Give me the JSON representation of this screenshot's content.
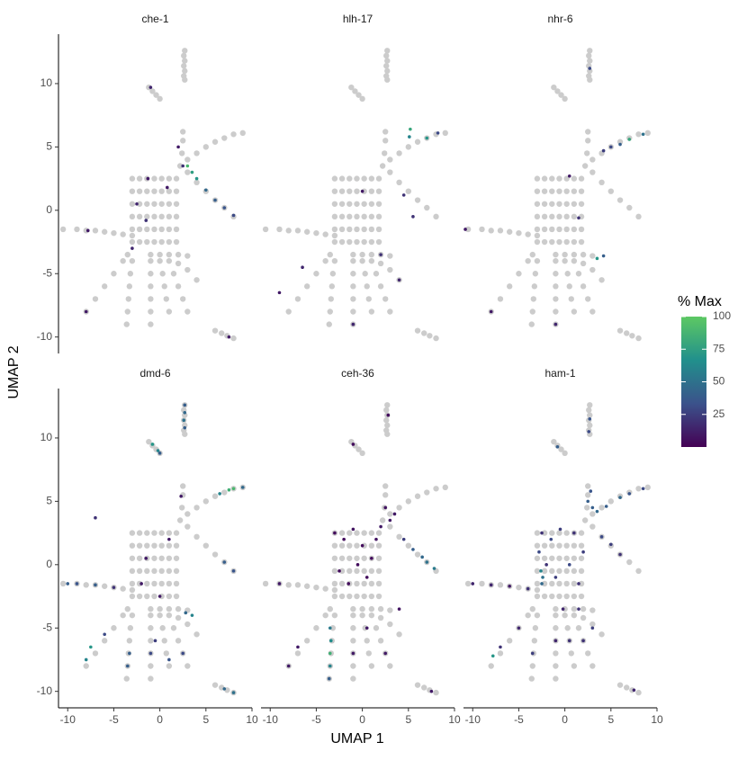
{
  "chart_data": {
    "type": "scatter",
    "xlabel": "UMAP 1",
    "ylabel": "UMAP 2",
    "xlim": [
      -11,
      10
    ],
    "ylim": [
      -11.3,
      13.9
    ],
    "xticks": [
      -10,
      -5,
      0,
      5,
      10
    ],
    "yticks": [
      -10,
      -5,
      0,
      5,
      10
    ],
    "colorbar": {
      "title": "% Max",
      "lim": [
        0,
        100
      ],
      "ticks": [
        25,
        50,
        75,
        100
      ],
      "colors": [
        "#440154",
        "#3b528b",
        "#21908c",
        "#5dc863"
      ]
    },
    "background": {
      "color": "#cccccc",
      "x": [
        2.7,
        2.6,
        2.7,
        2.6,
        2.7,
        2.6,
        2.7,
        -1.2,
        -0.8,
        -0.4,
        0,
        -3,
        -2.2,
        -1.4,
        -0.6,
        0.2,
        1,
        1.8,
        -3,
        -2.2,
        -1.4,
        -0.6,
        0.2,
        1,
        1.8,
        -3,
        -2.2,
        -1.4,
        -0.6,
        0.2,
        1,
        1.8,
        -3,
        -2.2,
        -1.4,
        -0.6,
        0.2,
        1,
        1.8,
        -3,
        -2.2,
        -1.4,
        -0.6,
        0.2,
        1,
        1.8,
        -3,
        -2.2,
        -1.4,
        -0.6,
        0.2,
        1,
        1.8,
        2.2,
        2.4,
        2.5,
        2.5,
        3,
        4,
        5,
        6,
        7,
        8,
        9,
        3,
        4,
        5,
        6,
        7,
        8,
        -3,
        -4,
        -5,
        -6,
        -7,
        -8,
        -9,
        -10.5,
        -3.5,
        -4,
        -5,
        -6,
        -7,
        -8,
        -3,
        -3.2,
        -3.3,
        -3.4,
        -3.5,
        -3.6,
        -1,
        -1,
        -1,
        -1,
        -1,
        -1,
        0,
        0.3,
        0.5,
        0.7,
        1,
        1,
        1.5,
        2,
        2.5,
        3,
        -1,
        0,
        1,
        2,
        3,
        2,
        3,
        4,
        6,
        6.7,
        7.3,
        8
      ],
      "y": [
        12.6,
        12.2,
        11.8,
        11.4,
        11,
        10.6,
        10.3,
        9.7,
        9.4,
        9.1,
        8.8,
        -2.5,
        -2.5,
        -2.5,
        -2.5,
        -2.5,
        -2.5,
        -2.5,
        -1.5,
        -1.5,
        -1.5,
        -1.5,
        -1.5,
        -1.5,
        -1.5,
        -0.5,
        -0.5,
        -0.5,
        -0.5,
        -0.5,
        -0.5,
        -0.5,
        0.5,
        0.5,
        0.5,
        0.5,
        0.5,
        0.5,
        0.5,
        1.5,
        1.5,
        1.5,
        1.5,
        1.5,
        1.5,
        1.5,
        2.5,
        2.5,
        2.5,
        2.5,
        2.5,
        2.5,
        2.5,
        3.5,
        4.5,
        5.5,
        6.2,
        4,
        4.5,
        5,
        5.4,
        5.7,
        6,
        6.1,
        3,
        2.2,
        1.5,
        0.8,
        0.2,
        -0.5,
        -2,
        -1.9,
        -1.8,
        -1.7,
        -1.6,
        -1.6,
        -1.5,
        -1.5,
        -3.5,
        -4,
        -5,
        -6,
        -7,
        -8,
        -4,
        -5,
        -6,
        -7,
        -8,
        -9,
        -4,
        -5,
        -6,
        -7,
        -8,
        -9,
        -4,
        -5,
        -6,
        -7,
        -8,
        -4,
        -5,
        -6,
        -7,
        -8,
        -3.5,
        -3.5,
        -3.5,
        -3.5,
        -3.6,
        -4.2,
        -4.7,
        -5.5,
        -9.5,
        -9.7,
        -9.9,
        -10.1
      ]
    },
    "facets": [
      {
        "title": "che-1",
        "x": [
          3,
          3.5,
          4,
          5,
          6,
          7,
          8,
          2.5,
          2,
          -1,
          -1.5,
          -2.5,
          -8,
          -7.8,
          7.5,
          -3,
          -1.3,
          0.8
        ],
        "y": [
          3.5,
          3,
          2.5,
          1.6,
          0.8,
          0.2,
          -0.4,
          3.5,
          5,
          9.7,
          -0.8,
          0.5,
          -8,
          -1.6,
          -10,
          -3,
          2.5,
          1.8
        ],
        "values": [
          90,
          75,
          70,
          45,
          40,
          35,
          30,
          20,
          10,
          15,
          20,
          15,
          10,
          10,
          10,
          15,
          10,
          10
        ]
      },
      {
        "title": "hlh-17",
        "x": [
          5.2,
          5.1,
          7,
          8.2,
          2,
          4,
          -6.5,
          -9,
          -1,
          5.5,
          4.5,
          0
        ],
        "y": [
          6.4,
          5.8,
          5.7,
          6.1,
          -3.5,
          -5.5,
          -4.5,
          -6.5,
          -9,
          -0.5,
          1.2,
          1.5
        ],
        "values": [
          80,
          60,
          70,
          30,
          20,
          15,
          15,
          10,
          15,
          20,
          20,
          10
        ]
      },
      {
        "title": "nhr-6",
        "x": [
          8.5,
          7,
          6,
          5,
          4.2,
          3.5,
          4.2,
          2.7,
          -1,
          -8,
          -10.8,
          1.5,
          0.5
        ],
        "y": [
          6,
          5.6,
          5.2,
          5,
          4.7,
          -3.8,
          -3.6,
          11.2,
          -9,
          -8,
          -1.5,
          -0.6,
          2.7
        ],
        "values": [
          50,
          80,
          40,
          30,
          25,
          70,
          40,
          30,
          15,
          10,
          10,
          20,
          10
        ]
      },
      {
        "title": "dmd-6",
        "x": [
          2.7,
          2.7,
          2.6,
          2.7,
          -0.8,
          -0.2,
          0,
          7.5,
          8,
          6.5,
          9,
          7,
          8,
          -10,
          -9,
          -7,
          -5,
          -7.5,
          -8,
          -6,
          -3.5,
          -3.3,
          -1,
          -0.5,
          1,
          2.5,
          3.5,
          2.8,
          7,
          8,
          -1.5,
          1,
          -2,
          0,
          -7,
          2.3
        ],
        "y": [
          12.6,
          12,
          11.4,
          10.8,
          9.5,
          9,
          8.8,
          5.9,
          6,
          5.6,
          6.1,
          0.2,
          -0.5,
          -1.5,
          -1.5,
          -1.6,
          -1.8,
          -6.5,
          -7.5,
          -5.5,
          -8,
          -7,
          -7,
          -6,
          -7.5,
          -7,
          -4,
          -3.8,
          -9.8,
          -10.1,
          0.5,
          2,
          -1.5,
          -2.5,
          3.7,
          5.4
        ],
        "values": [
          40,
          45,
          50,
          40,
          70,
          60,
          40,
          85,
          90,
          60,
          45,
          40,
          35,
          40,
          35,
          40,
          20,
          70,
          60,
          30,
          40,
          40,
          30,
          25,
          35,
          30,
          60,
          45,
          45,
          50,
          10,
          10,
          10,
          10,
          20,
          10
        ]
      },
      {
        "title": "ceh-36",
        "x": [
          -3,
          -2,
          -1,
          0,
          1,
          -2.5,
          -1.5,
          0.5,
          1.5,
          -0.5,
          2,
          3,
          2.5,
          3.5,
          4.5,
          5.5,
          6.5,
          7,
          7.8,
          -3.5,
          -3.4,
          -3.5,
          -3.5,
          -3.6,
          -7,
          -8,
          -9,
          -1,
          7.5,
          0.5,
          -1,
          2.5,
          2.8,
          4
        ],
        "y": [
          2.5,
          2,
          2.8,
          1.5,
          0.5,
          -0.5,
          -1.5,
          -1,
          2,
          0,
          3,
          3.5,
          4.5,
          4,
          2,
          1.2,
          0.6,
          0.2,
          -0.3,
          -5,
          -6,
          -7,
          -8,
          -9,
          -6.5,
          -8,
          -1.5,
          9.5,
          -10,
          -5,
          -7,
          -7,
          11.8,
          -3.5
        ],
        "values": [
          5,
          5,
          8,
          5,
          5,
          5,
          5,
          5,
          8,
          5,
          10,
          10,
          8,
          10,
          25,
          40,
          45,
          50,
          55,
          55,
          65,
          85,
          60,
          40,
          10,
          10,
          10,
          5,
          10,
          10,
          10,
          10,
          5,
          8
        ]
      },
      {
        "title": "ham-1",
        "x": [
          -2.5,
          -1.5,
          -0.5,
          1,
          2,
          -2.8,
          -2,
          -1,
          0.5,
          1.5,
          -2.5,
          -2.6,
          -2.4,
          2.5,
          2.8,
          3,
          3.5,
          4.5,
          6,
          7,
          8.5,
          2.7,
          2.6,
          -0.8,
          4,
          5,
          6,
          -10,
          -8,
          -6,
          -4,
          -7,
          -7.8,
          -5,
          -3.5,
          -1,
          0.5,
          2,
          3,
          7.5,
          -0.2,
          1.5
        ],
        "y": [
          2.5,
          2,
          2.8,
          2.5,
          1,
          1,
          0,
          -1,
          0,
          -1.5,
          -1.5,
          -0.5,
          -1,
          5,
          5.8,
          4.5,
          4.2,
          4.6,
          5.3,
          5.6,
          6,
          11.5,
          10.5,
          9.3,
          2.2,
          1.6,
          0.8,
          -1.5,
          -1.6,
          -1.7,
          -1.9,
          -6.5,
          -7.2,
          -5,
          -7,
          -6,
          -6,
          -6,
          -5,
          -9.9,
          -3.5,
          -3.5
        ],
        "values": [
          20,
          30,
          25,
          20,
          25,
          30,
          20,
          25,
          30,
          20,
          45,
          60,
          50,
          40,
          35,
          40,
          45,
          40,
          45,
          35,
          30,
          35,
          30,
          40,
          30,
          25,
          20,
          15,
          15,
          10,
          20,
          20,
          70,
          15,
          25,
          15,
          20,
          20,
          25,
          15,
          15,
          20
        ]
      }
    ]
  }
}
